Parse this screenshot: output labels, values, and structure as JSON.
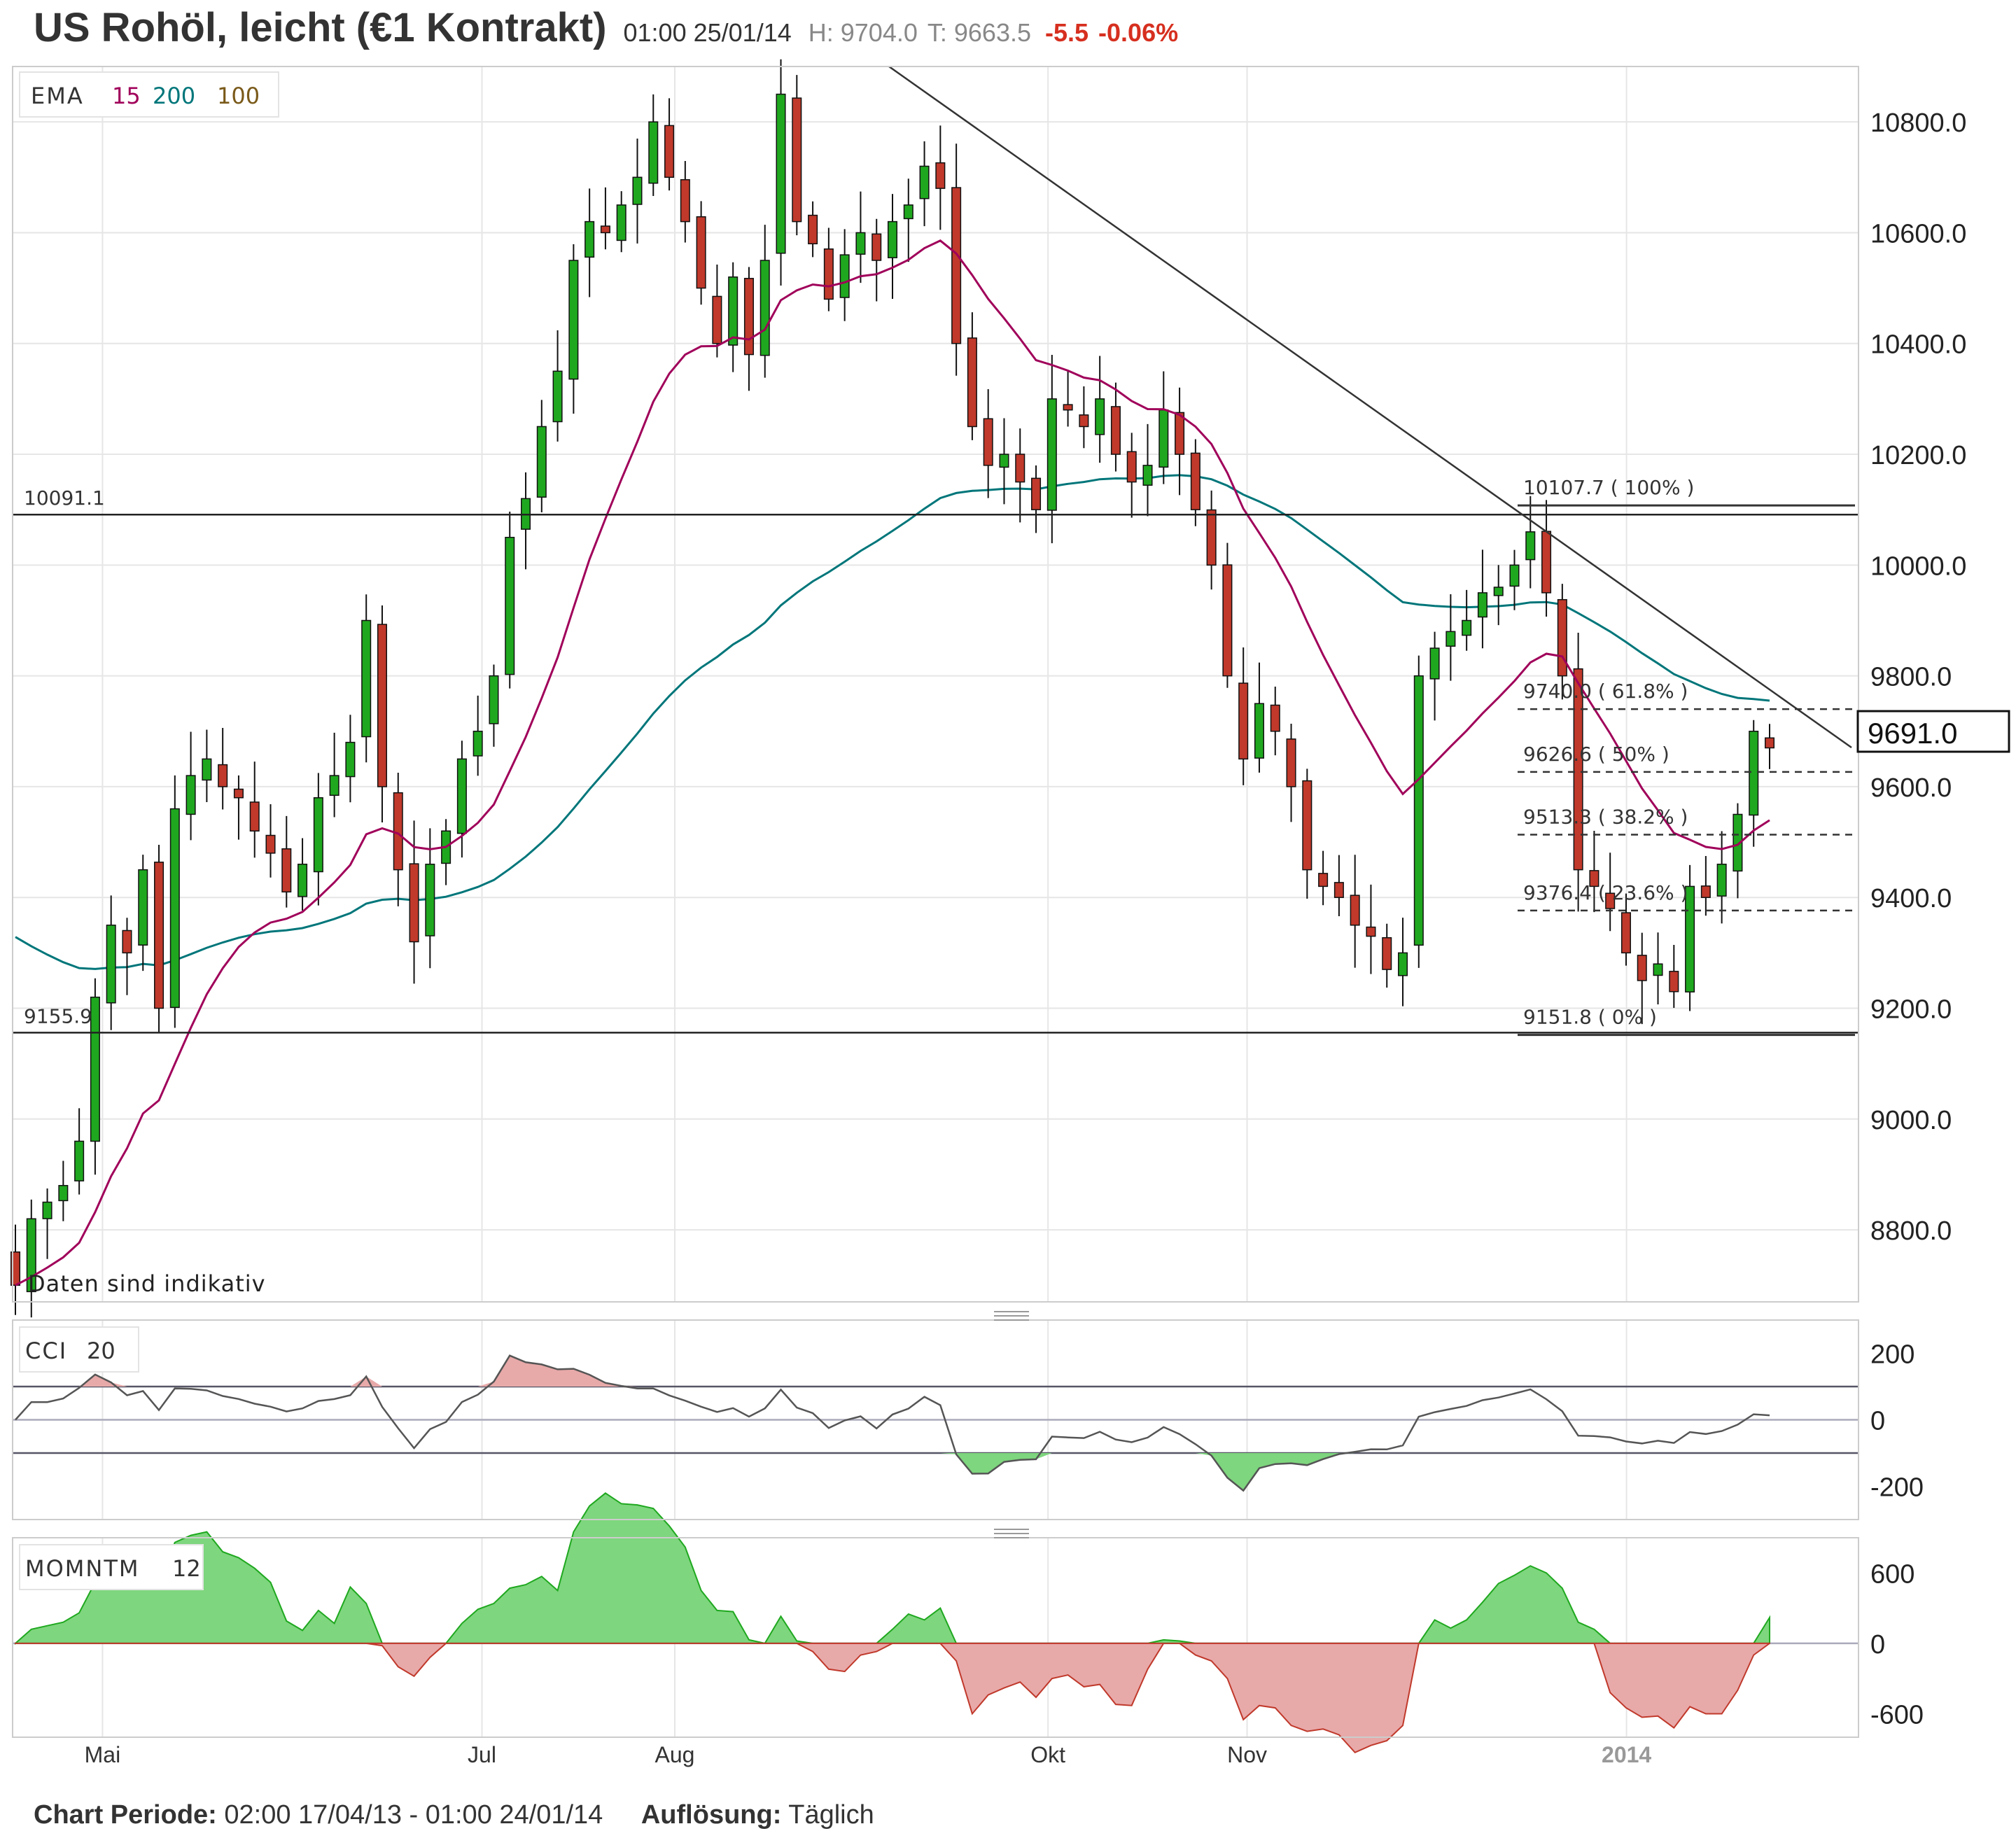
{
  "header": {
    "title": "US Rohöl, leicht (€1 Kontrakt)",
    "datetime": "01:00 25/01/14",
    "high": "H: 9704.0",
    "tick": "T: 9663.5",
    "change": "-5.5",
    "change_pct": "-0.06%"
  },
  "footer": {
    "period_label": "Chart Periode:",
    "period_value": "02:00 17/04/13 - 01:00 24/01/14",
    "resolution_label": "Auflösung:",
    "resolution_value": "Täglich"
  },
  "colors": {
    "up": "#1fa81f",
    "down": "#c0392b",
    "ema15": "#a0005a",
    "ema200": "#00767a",
    "ema100": "#7a5a1a",
    "grid": "#e6e6e6",
    "cci_pos": "#e8a9a9",
    "cci_neg": "#7ed67e"
  },
  "main": {
    "ema_label": "EMA",
    "ema_periods": [
      "15",
      "200",
      "100"
    ],
    "note": "Daten sind indikativ",
    "current_price": "9691.0",
    "hlines": [
      {
        "value": 10091.1,
        "label": "10091.1"
      },
      {
        "value": 9155.9,
        "label": "9155.9"
      }
    ],
    "fib_levels": [
      {
        "value": 10107.7,
        "label": "10107.7 ( 100% )",
        "style": "solid"
      },
      {
        "value": 9740.0,
        "label": "9740.0 ( 61.8% )",
        "style": "dashed"
      },
      {
        "value": 9626.6,
        "label": "9626.6 ( 50% )",
        "style": "dashed"
      },
      {
        "value": 9513.3,
        "label": "9513.3 ( 38.2% )",
        "style": "dashed"
      },
      {
        "value": 9376.4,
        "label": "9376.4 ( 23.6% )",
        "style": "dashed"
      },
      {
        "value": 9151.8,
        "label": "9151.8 ( 0% )",
        "style": "solid"
      }
    ]
  },
  "cci": {
    "label": "CCI",
    "period": "20",
    "ticks": [
      "200",
      "0",
      "-200"
    ]
  },
  "momentum": {
    "label": "MOMNTM",
    "period": "12",
    "ticks": [
      "600",
      "0",
      "-600"
    ]
  },
  "chart_data": [
    {
      "type": "candlestick",
      "title": "US Rohöl, leicht (€1 Kontrakt)",
      "x_range": [
        "2013-04-17",
        "2014-01-24"
      ],
      "x_ticks": [
        "Mai",
        "Jul",
        "Aug",
        "Okt",
        "Nov",
        "2014"
      ],
      "y_ticks": [
        "8800.0",
        "9000.0",
        "9200.0",
        "9400.0",
        "9600.0",
        "9800.0",
        "10000.0",
        "10200.0",
        "10400.0",
        "10600.0",
        "10800.0"
      ],
      "ylim": [
        8670,
        10900
      ],
      "grid": true,
      "close": [
        8700,
        8820,
        8850,
        8880,
        8960,
        9220,
        9350,
        9300,
        9450,
        9200,
        9560,
        9620,
        9650,
        9600,
        9580,
        9520,
        9480,
        9410,
        9460,
        9580,
        9620,
        9680,
        9900,
        9600,
        9450,
        9320,
        9460,
        9520,
        9650,
        9700,
        9800,
        10050,
        10120,
        10250,
        10350,
        10550,
        10620,
        10600,
        10650,
        10700,
        10800,
        10700,
        10620,
        10500,
        10400,
        10520,
        10380,
        10550,
        10850,
        10620,
        10580,
        10480,
        10560,
        10600,
        10550,
        10620,
        10650,
        10720,
        10680,
        10400,
        10250,
        10180,
        10200,
        10150,
        10100,
        10300,
        10280,
        10250,
        10300,
        10200,
        10150,
        10180,
        10280,
        10200,
        10100,
        10000,
        9800,
        9650,
        9750,
        9700,
        9600,
        9450,
        9420,
        9400,
        9350,
        9330,
        9270,
        9300,
        9800,
        9850,
        9880,
        9900,
        9950,
        9960,
        10000,
        10060,
        9950,
        9800,
        9450,
        9420,
        9380,
        9300,
        9250,
        9280,
        9230,
        9420,
        9400,
        9460,
        9550,
        9700,
        9670
      ],
      "close_note": "approximate daily closes read from the chart"
    },
    {
      "type": "line",
      "title": "CCI 20",
      "ylim": [
        -300,
        300
      ],
      "y_ticks": [
        "200",
        "0",
        "-200"
      ],
      "reference_lines": [
        100,
        0,
        -100
      ]
    },
    {
      "type": "area",
      "title": "MOMNTM 12",
      "ylim": [
        -800,
        900
      ],
      "y_ticks": [
        "600",
        "0",
        "-600"
      ]
    }
  ]
}
